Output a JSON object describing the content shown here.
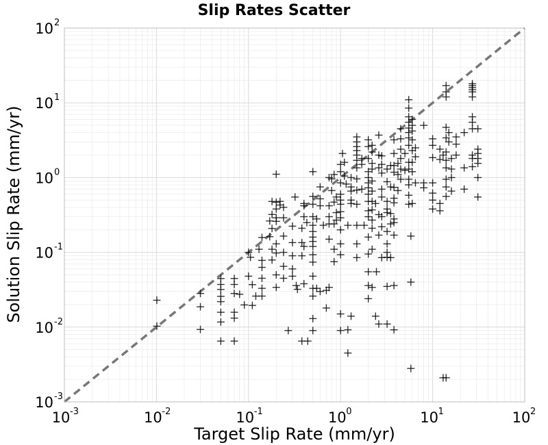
{
  "chart_data": {
    "type": "scatter",
    "title": "Slip Rates Scatter",
    "xlabel": "Target Slip Rate (mm/yr)",
    "ylabel": "Solution Slip Rate (mm/yr)",
    "xscale": "log",
    "yscale": "log",
    "xlim": [
      0.001,
      100
    ],
    "ylim": [
      0.001,
      100
    ],
    "grid": true,
    "reference_line": "y = x, dashed gray",
    "x_ticks": [
      {
        "base": "10",
        "exp": "-3"
      },
      {
        "base": "10",
        "exp": "-2"
      },
      {
        "base": "10",
        "exp": "-1"
      },
      {
        "base": "10",
        "exp": "0"
      },
      {
        "base": "10",
        "exp": "1"
      },
      {
        "base": "10",
        "exp": "2"
      }
    ],
    "y_ticks": [
      {
        "base": "10",
        "exp": "-3"
      },
      {
        "base": "10",
        "exp": "-2"
      },
      {
        "base": "10",
        "exp": "-1"
      },
      {
        "base": "10",
        "exp": "0"
      },
      {
        "base": "10",
        "exp": "1"
      },
      {
        "base": "10",
        "exp": "2"
      }
    ],
    "marker": "+",
    "marker_color": "#000000",
    "points": [
      [
        0.0101,
        0.0229
      ],
      [
        0.0101,
        0.0103
      ],
      [
        0.03,
        0.0282
      ],
      [
        0.03,
        0.0187
      ],
      [
        0.03,
        0.0093
      ],
      [
        0.05,
        0.0446
      ],
      [
        0.05,
        0.0372
      ],
      [
        0.05,
        0.0319
      ],
      [
        0.05,
        0.0258
      ],
      [
        0.05,
        0.0219
      ],
      [
        0.05,
        0.0158
      ],
      [
        0.05,
        0.0117
      ],
      [
        0.05,
        0.0065
      ],
      [
        0.07,
        0.0447
      ],
      [
        0.07,
        0.0372
      ],
      [
        0.07,
        0.0282
      ],
      [
        0.07,
        0.0158
      ],
      [
        0.07,
        0.0132
      ],
      [
        0.07,
        0.0065
      ],
      [
        0.08,
        0.0275
      ],
      [
        0.09,
        0.0198
      ],
      [
        0.1,
        0.1
      ],
      [
        0.105,
        0.086
      ],
      [
        0.1,
        0.048
      ],
      [
        0.11,
        0.037
      ],
      [
        0.11,
        0.0195
      ],
      [
        0.12,
        0.026
      ],
      [
        0.13,
        0.11
      ],
      [
        0.14,
        0.158
      ],
      [
        0.14,
        0.078
      ],
      [
        0.14,
        0.063
      ],
      [
        0.14,
        0.045
      ],
      [
        0.14,
        0.033
      ],
      [
        0.14,
        0.026
      ],
      [
        0.17,
        0.263
      ],
      [
        0.17,
        0.162
      ],
      [
        0.18,
        0.479
      ],
      [
        0.18,
        0.321
      ],
      [
        0.18,
        0.209
      ],
      [
        0.18,
        0.11
      ],
      [
        0.18,
        0.079
      ],
      [
        0.2,
        0.468
      ],
      [
        0.2,
        0.38
      ],
      [
        0.2,
        0.29
      ],
      [
        0.2,
        0.26
      ],
      [
        0.2,
        0.13
      ],
      [
        0.2,
        0.098
      ],
      [
        0.2,
        0.05
      ],
      [
        0.2,
        0.034
      ],
      [
        0.2,
        1.11
      ],
      [
        0.22,
        0.48
      ],
      [
        0.22,
        0.43
      ],
      [
        0.24,
        0.4
      ],
      [
        0.24,
        0.29
      ],
      [
        0.24,
        0.165
      ],
      [
        0.24,
        0.1
      ],
      [
        0.24,
        0.065
      ],
      [
        0.24,
        0.045
      ],
      [
        0.27,
        0.009
      ],
      [
        0.3,
        0.224
      ],
      [
        0.3,
        0.135
      ],
      [
        0.3,
        0.09
      ],
      [
        0.3,
        0.06
      ],
      [
        0.3,
        0.048
      ],
      [
        0.32,
        0.55
      ],
      [
        0.33,
        0.036
      ],
      [
        0.34,
        0.032
      ],
      [
        0.38,
        0.21
      ],
      [
        0.38,
        0.135
      ],
      [
        0.38,
        0.09
      ],
      [
        0.38,
        0.0065
      ],
      [
        0.4,
        0.45
      ],
      [
        0.4,
        0.42
      ],
      [
        0.4,
        0.3
      ],
      [
        0.4,
        0.12
      ],
      [
        0.4,
        0.038
      ],
      [
        0.43,
        0.25
      ],
      [
        0.44,
        0.0065
      ],
      [
        0.5,
        1.2
      ],
      [
        0.5,
        0.56
      ],
      [
        0.5,
        0.44
      ],
      [
        0.5,
        0.3
      ],
      [
        0.5,
        0.23
      ],
      [
        0.5,
        0.19
      ],
      [
        0.5,
        0.16
      ],
      [
        0.5,
        0.14
      ],
      [
        0.5,
        0.12
      ],
      [
        0.5,
        0.093
      ],
      [
        0.5,
        0.074
      ],
      [
        0.5,
        0.048
      ],
      [
        0.5,
        0.033
      ],
      [
        0.5,
        0.026
      ],
      [
        0.5,
        0.013
      ],
      [
        0.5,
        0.009
      ],
      [
        0.55,
        0.28
      ],
      [
        0.55,
        0.033
      ],
      [
        0.6,
        0.75
      ],
      [
        0.6,
        0.52
      ],
      [
        0.6,
        0.42
      ],
      [
        0.6,
        0.03
      ],
      [
        0.65,
        0.23
      ],
      [
        0.7,
        0.031
      ],
      [
        0.7,
        0.018
      ],
      [
        0.75,
        1.0
      ],
      [
        0.75,
        0.42
      ],
      [
        0.75,
        0.3
      ],
      [
        0.75,
        0.24
      ],
      [
        0.75,
        0.15
      ],
      [
        0.75,
        0.034
      ],
      [
        0.8,
        0.96
      ],
      [
        0.8,
        0.67
      ],
      [
        0.85,
        1.1
      ],
      [
        0.85,
        0.47
      ],
      [
        0.85,
        0.24
      ],
      [
        0.85,
        0.11
      ],
      [
        0.85,
        0.075
      ],
      [
        0.9,
        0.55
      ],
      [
        0.9,
        0.34
      ],
      [
        0.9,
        0.27
      ],
      [
        1.0,
        1.5
      ],
      [
        1.0,
        1.2
      ],
      [
        1.0,
        0.85
      ],
      [
        1.0,
        0.6
      ],
      [
        1.0,
        0.5
      ],
      [
        1.0,
        0.44
      ],
      [
        1.0,
        0.35
      ],
      [
        1.0,
        0.29
      ],
      [
        1.0,
        0.2
      ],
      [
        1.0,
        0.13
      ],
      [
        1.0,
        0.093
      ],
      [
        1.0,
        0.015
      ],
      [
        1.0,
        0.009
      ],
      [
        1.05,
        2.1
      ],
      [
        1.1,
        1.6
      ],
      [
        1.1,
        1.05
      ],
      [
        1.15,
        0.82
      ],
      [
        1.2,
        0.23
      ],
      [
        1.2,
        0.0092
      ],
      [
        1.2,
        0.0045
      ],
      [
        1.3,
        1.0
      ],
      [
        1.3,
        0.75
      ],
      [
        1.3,
        0.66
      ],
      [
        1.3,
        0.5
      ],
      [
        1.3,
        0.45
      ],
      [
        1.3,
        0.014
      ],
      [
        1.5,
        3.5
      ],
      [
        1.5,
        3.0
      ],
      [
        1.5,
        2.6
      ],
      [
        1.5,
        2.3
      ],
      [
        1.5,
        2.0
      ],
      [
        1.5,
        1.7
      ],
      [
        1.5,
        1.35
      ],
      [
        1.5,
        0.96
      ],
      [
        1.5,
        0.68
      ],
      [
        1.5,
        0.44
      ],
      [
        1.5,
        0.23
      ],
      [
        1.5,
        0.13
      ],
      [
        1.5,
        0.085
      ],
      [
        1.7,
        1.8
      ],
      [
        1.7,
        1.5
      ],
      [
        1.7,
        0.7
      ],
      [
        1.8,
        0.23
      ],
      [
        2.0,
        3.2
      ],
      [
        2.0,
        2.6
      ],
      [
        2.0,
        1.8
      ],
      [
        2.0,
        1.2
      ],
      [
        2.0,
        1.0
      ],
      [
        2.0,
        0.85
      ],
      [
        2.0,
        0.73
      ],
      [
        2.0,
        0.6
      ],
      [
        2.0,
        0.48
      ],
      [
        2.0,
        0.36
      ],
      [
        2.0,
        0.3
      ],
      [
        2.0,
        0.16
      ],
      [
        2.0,
        0.095
      ],
      [
        2.0,
        0.055
      ],
      [
        2.0,
        0.036
      ],
      [
        2.0,
        0.024
      ],
      [
        2.2,
        2.7
      ],
      [
        2.2,
        2.2
      ],
      [
        2.2,
        1.55
      ],
      [
        2.2,
        1.3
      ],
      [
        2.2,
        0.9
      ],
      [
        2.2,
        0.66
      ],
      [
        2.2,
        0.48
      ],
      [
        2.2,
        0.37
      ],
      [
        2.2,
        0.27
      ],
      [
        2.2,
        0.21
      ],
      [
        2.2,
        0.11
      ],
      [
        2.2,
        0.034
      ],
      [
        2.4,
        0.45
      ],
      [
        2.4,
        0.014
      ],
      [
        2.45,
        0.055
      ],
      [
        2.6,
        3.7
      ],
      [
        2.6,
        2.0
      ],
      [
        2.6,
        1.35
      ],
      [
        2.6,
        0.32
      ],
      [
        2.6,
        0.17
      ],
      [
        2.6,
        0.011
      ],
      [
        2.8,
        1.95
      ],
      [
        2.8,
        1.5
      ],
      [
        2.8,
        1.15
      ],
      [
        2.8,
        0.7
      ],
      [
        2.8,
        0.55
      ],
      [
        2.8,
        0.3
      ],
      [
        2.8,
        0.22
      ],
      [
        2.8,
        0.085
      ],
      [
        3.2,
        1.3
      ],
      [
        3.2,
        0.88
      ],
      [
        3.2,
        0.48
      ],
      [
        3.2,
        0.38
      ],
      [
        3.2,
        0.34
      ],
      [
        3.2,
        0.19
      ],
      [
        3.2,
        0.13
      ],
      [
        3.2,
        0.1
      ],
      [
        3.2,
        0.086
      ],
      [
        3.2,
        0.035
      ],
      [
        3.2,
        0.011
      ],
      [
        3.5,
        1.45
      ],
      [
        3.5,
        0.75
      ],
      [
        3.5,
        0.33
      ],
      [
        3.5,
        0.24
      ],
      [
        3.5,
        0.085
      ],
      [
        3.8,
        3.2
      ],
      [
        3.8,
        2.1
      ],
      [
        3.8,
        1.45
      ],
      [
        3.8,
        1.18
      ],
      [
        3.8,
        0.74
      ],
      [
        3.8,
        0.53
      ],
      [
        3.8,
        0.46
      ],
      [
        3.8,
        0.28
      ],
      [
        3.8,
        0.25
      ],
      [
        3.8,
        0.17
      ],
      [
        3.8,
        0.036
      ],
      [
        3.8,
        0.0092
      ],
      [
        4.2,
        1.55
      ],
      [
        4.2,
        1.1
      ],
      [
        4.2,
        0.67
      ],
      [
        4.5,
        4.5
      ],
      [
        4.5,
        3.3
      ],
      [
        4.5,
        2.4
      ],
      [
        4.5,
        1.8
      ],
      [
        4.5,
        1.3
      ],
      [
        4.5,
        0.95
      ],
      [
        5.0,
        2.1
      ],
      [
        5.0,
        1.25
      ],
      [
        5.5,
        11.0
      ],
      [
        5.5,
        8.5
      ],
      [
        5.5,
        6.5
      ],
      [
        5.5,
        5.5
      ],
      [
        5.5,
        4.6
      ],
      [
        5.5,
        4.0
      ],
      [
        5.5,
        3.4
      ],
      [
        5.5,
        2.7
      ],
      [
        5.5,
        1.6
      ],
      [
        5.5,
        1.3
      ],
      [
        5.5,
        0.95
      ],
      [
        5.5,
        0.8
      ],
      [
        5.5,
        0.58
      ],
      [
        5.5,
        0.44
      ],
      [
        5.8,
        0.165
      ],
      [
        5.8,
        0.04
      ],
      [
        5.8,
        0.0028
      ],
      [
        6.0,
        6.0
      ],
      [
        6.0,
        5.0
      ],
      [
        6.0,
        4.2
      ],
      [
        6.0,
        3.2
      ],
      [
        6.0,
        2.3
      ],
      [
        6.0,
        1.6
      ],
      [
        6.0,
        1.2
      ],
      [
        6.0,
        0.45
      ],
      [
        6.5,
        2.5
      ],
      [
        6.5,
        1.9
      ],
      [
        6.5,
        0.85
      ],
      [
        8.0,
        5.0
      ],
      [
        8.0,
        0.85
      ],
      [
        8.0,
        0.73
      ],
      [
        10.0,
        3.3
      ],
      [
        10.0,
        2.7
      ],
      [
        10.0,
        1.85
      ],
      [
        10.0,
        0.85
      ],
      [
        10.0,
        0.62
      ],
      [
        10.0,
        0.5
      ],
      [
        10.0,
        0.38
      ],
      [
        12.0,
        2.4
      ],
      [
        12.0,
        1.75
      ],
      [
        12.0,
        0.45
      ],
      [
        12.0,
        0.36
      ],
      [
        13.0,
        2.0
      ],
      [
        13.0,
        0.0021
      ],
      [
        14.0,
        17.0
      ],
      [
        14.0,
        14.0
      ],
      [
        14.0,
        12.0
      ],
      [
        14.0,
        4.7
      ],
      [
        14.0,
        3.4
      ],
      [
        14.0,
        2.2
      ],
      [
        14.0,
        1.7
      ],
      [
        14.0,
        1.35
      ],
      [
        14.0,
        0.95
      ],
      [
        14.0,
        0.75
      ],
      [
        14.0,
        0.56
      ],
      [
        14.0,
        0.0021
      ],
      [
        15.0,
        4.0
      ],
      [
        15.0,
        3.0
      ],
      [
        16.0,
        1.8
      ],
      [
        16.0,
        1.3
      ],
      [
        16.0,
        1.0
      ],
      [
        16.0,
        0.66
      ],
      [
        18.0,
        3.5
      ],
      [
        18.0,
        2.8
      ],
      [
        18.0,
        2.0
      ],
      [
        22.0,
        4.0
      ],
      [
        22.0,
        1.35
      ],
      [
        22.0,
        0.7
      ],
      [
        27.0,
        18.0
      ],
      [
        27.0,
        17.0
      ],
      [
        27.0,
        16.0
      ],
      [
        27.0,
        15.0
      ],
      [
        27.0,
        14.0
      ],
      [
        27.0,
        12.0
      ],
      [
        27.0,
        6.5
      ],
      [
        27.0,
        5.5
      ],
      [
        27.0,
        4.5
      ],
      [
        27.0,
        2.0
      ],
      [
        27.0,
        1.8
      ],
      [
        27.0,
        1.4
      ],
      [
        31.0,
        4.5
      ],
      [
        31.0,
        2.4
      ],
      [
        31.0,
        2.1
      ],
      [
        31.0,
        1.8
      ],
      [
        31.0,
        1.55
      ],
      [
        31.0,
        1.0
      ],
      [
        31.0,
        0.55
      ]
    ]
  }
}
